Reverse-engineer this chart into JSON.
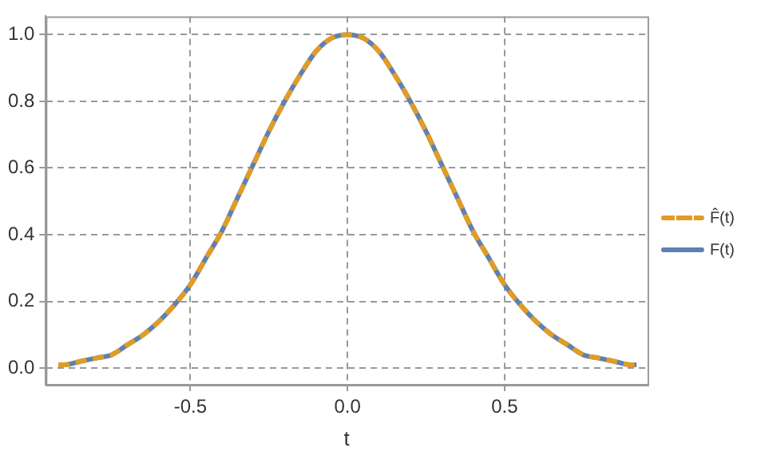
{
  "chart_data": {
    "type": "line",
    "xlabel": "t",
    "x": [
      -0.92,
      -0.9,
      -0.85,
      -0.8,
      -0.75,
      -0.7,
      -0.65,
      -0.6,
      -0.55,
      -0.5,
      -0.45,
      -0.4,
      -0.35,
      -0.3,
      -0.25,
      -0.2,
      -0.15,
      -0.1,
      -0.05,
      0,
      0.05,
      0.1,
      0.15,
      0.2,
      0.25,
      0.3,
      0.35,
      0.4,
      0.45,
      0.5,
      0.55,
      0.6,
      0.65,
      0.7,
      0.75,
      0.8,
      0.85,
      0.9,
      0.92
    ],
    "series": [
      {
        "name": "F(t)",
        "color": "#5e81b5",
        "line_style": "solid",
        "values": [
          0.01,
          0.01,
          0.02,
          0.03,
          0.04,
          0.07,
          0.1,
          0.14,
          0.19,
          0.25,
          0.33,
          0.41,
          0.51,
          0.61,
          0.71,
          0.8,
          0.88,
          0.95,
          0.99,
          1,
          0.99,
          0.95,
          0.88,
          0.8,
          0.71,
          0.61,
          0.51,
          0.41,
          0.33,
          0.25,
          0.19,
          0.14,
          0.1,
          0.07,
          0.04,
          0.03,
          0.02,
          0.01,
          0.01
        ]
      },
      {
        "name": "F̂(t)",
        "color": "#e19c24",
        "line_style": "dashed",
        "values": [
          0.01,
          0.01,
          0.02,
          0.03,
          0.04,
          0.07,
          0.1,
          0.14,
          0.19,
          0.25,
          0.33,
          0.41,
          0.51,
          0.61,
          0.71,
          0.8,
          0.88,
          0.95,
          0.99,
          1,
          0.99,
          0.95,
          0.88,
          0.8,
          0.71,
          0.61,
          0.51,
          0.41,
          0.33,
          0.25,
          0.19,
          0.14,
          0.1,
          0.07,
          0.04,
          0.03,
          0.02,
          0.01,
          0.01
        ]
      }
    ],
    "xlim": [
      -0.96,
      0.955
    ],
    "ylim": [
      -0.05,
      1.055
    ],
    "xticks": [
      -0.5,
      {
        "value": 0,
        "label": "0.0"
      },
      0.5
    ],
    "yticks": [
      {
        "value": 0,
        "label": "0.0"
      },
      0.2,
      0.4,
      0.6,
      0.8,
      {
        "value": 1,
        "label": "1.0"
      }
    ],
    "grid": true,
    "legend": "right",
    "marker": "none"
  }
}
